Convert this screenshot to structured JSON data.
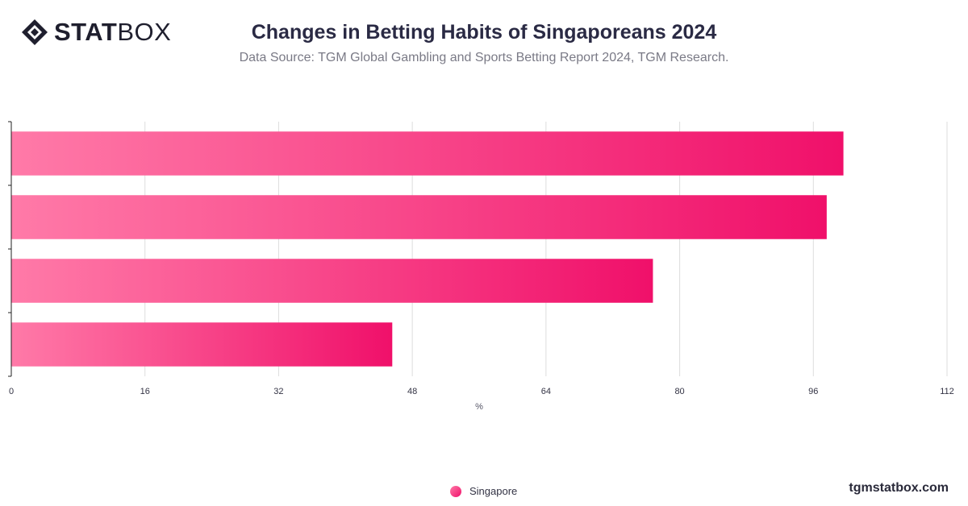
{
  "brand": {
    "logo_stat": "STAT",
    "logo_box": "BOX",
    "footer": "tgmstatbox.com"
  },
  "header": {
    "title": "Changes in Betting Habits of Singaporeans 2024",
    "subtitle": "Data Source: TGM Global Gambling and Sports Betting Report 2024, TGM Research."
  },
  "colors": {
    "bar_start": "#ff7aa8",
    "bar_end": "#f0106a",
    "grid": "#dddddd",
    "axis": "#222222"
  },
  "chart_data": {
    "type": "bar",
    "orientation": "horizontal",
    "title": "Changes in Betting Habits of Singaporeans 2024",
    "xlabel": "%",
    "ylabel": "",
    "xlim": [
      0,
      112
    ],
    "xticks": [
      0,
      16,
      32,
      48,
      64,
      80,
      96,
      112
    ],
    "grid": true,
    "categories": [
      "",
      "",
      "",
      ""
    ],
    "series": [
      {
        "name": "Singapore",
        "values": [
          99.6,
          97.6,
          76.8,
          45.6
        ]
      }
    ],
    "legend": "bottom-center"
  }
}
